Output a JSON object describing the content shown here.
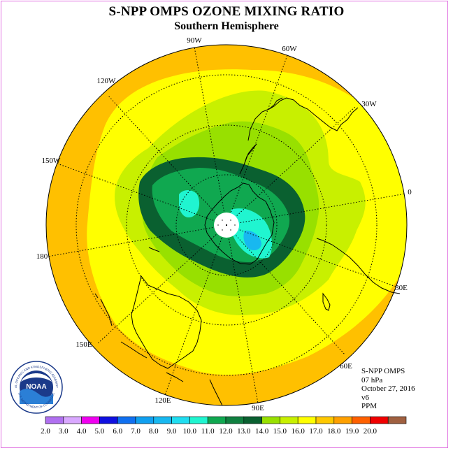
{
  "header": {
    "title": "S-NPP OMPS OZONE MIXING RATIO",
    "subtitle": "Southern Hemisphere"
  },
  "map": {
    "projection": "polar stereographic, south pole centered",
    "longitude_labels": [
      "90W",
      "60W",
      "30W",
      "0",
      "30E",
      "60E",
      "90E",
      "120E",
      "150E",
      "180",
      "150W",
      "120W"
    ],
    "polar_cap_color": "#ffffff"
  },
  "info": {
    "instrument": "S-NPP OMPS",
    "level": "07 hPa",
    "date": "October 27, 2016",
    "version": "v6",
    "units": "PPM"
  },
  "logo": {
    "text": "NOAA",
    "ring_text": "NATIONAL OCEANIC AND ATMOSPHERIC ADMINISTRATION",
    "ring_text_bottom": "U.S. DEPARTMENT OF COMMERCE"
  },
  "colorbar": {
    "ticks": [
      "2.0",
      "3.0",
      "4.0",
      "5.0",
      "6.0",
      "7.0",
      "8.0",
      "9.0",
      "10.0",
      "11.0",
      "12.0",
      "13.0",
      "14.0",
      "15.0",
      "16.0",
      "17.0",
      "18.0",
      "19.0",
      "20.0"
    ],
    "colors": [
      "#b070f0",
      "#d9a8ff",
      "#f000f0",
      "#1010e0",
      "#1070f0",
      "#10a0f0",
      "#18b8f0",
      "#20ddf0",
      "#20f5d0",
      "#10a850",
      "#108040",
      "#0a6030",
      "#98e000",
      "#c8f000",
      "#ffff00",
      "#ffc800",
      "#ffa000",
      "#ff6000",
      "#f00000",
      "#a06040"
    ]
  }
}
